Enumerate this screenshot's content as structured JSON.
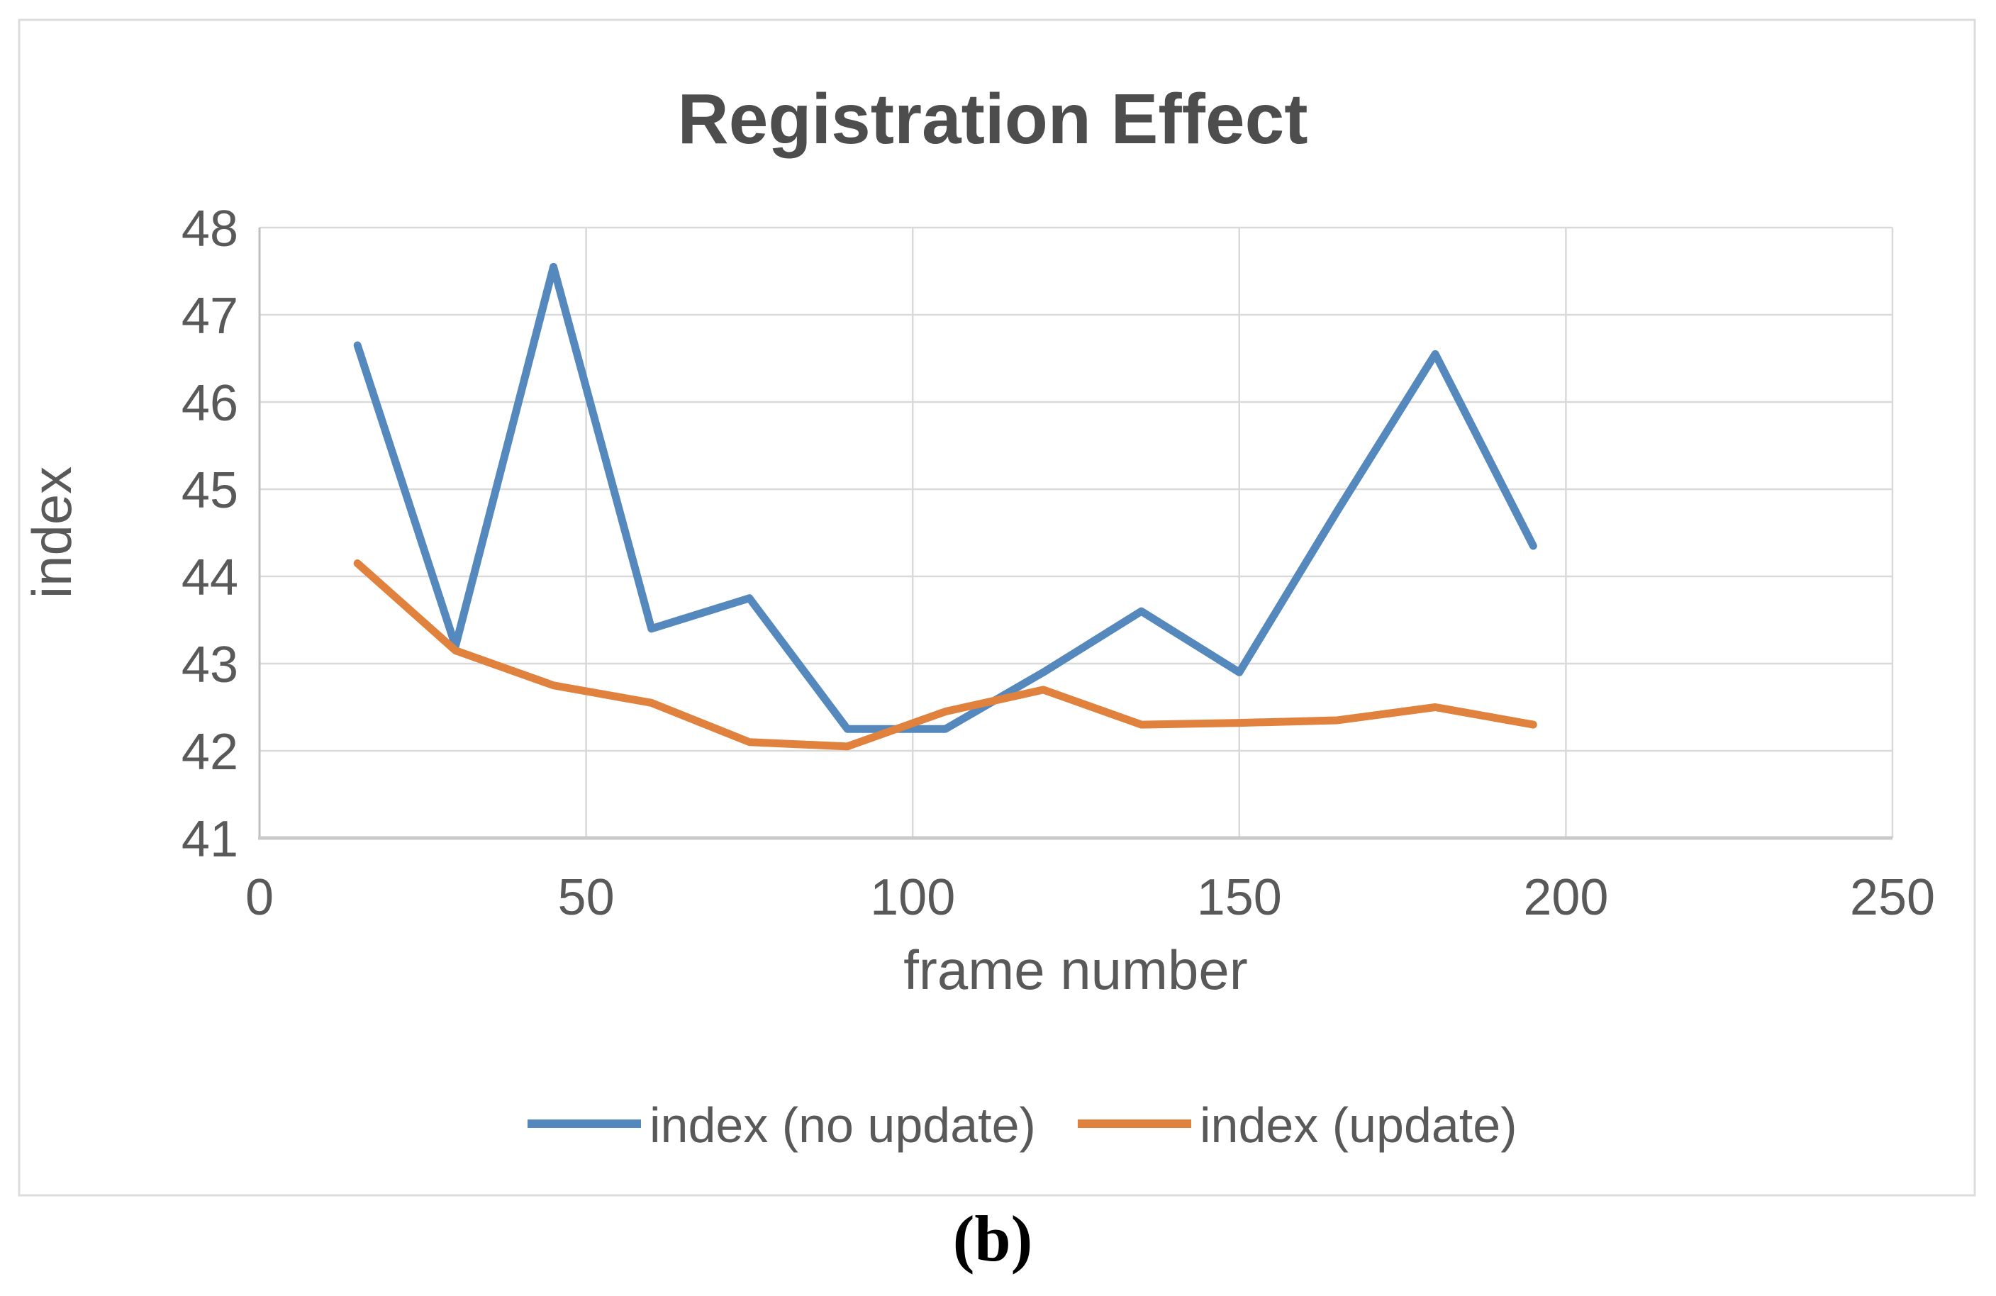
{
  "figure": {
    "caption": "(b)"
  },
  "chart_data": {
    "type": "line",
    "title": "Registration Effect",
    "xlabel": "frame number",
    "ylabel": "index",
    "x": [
      15,
      30,
      45,
      60,
      75,
      90,
      105,
      120,
      135,
      150,
      165,
      180,
      195
    ],
    "series": [
      {
        "name": "index (no update)",
        "color": "#5589be",
        "values": [
          46.65,
          43.2,
          47.55,
          43.4,
          43.75,
          42.25,
          42.25,
          42.9,
          43.6,
          42.9,
          44.75,
          46.55,
          44.35
        ]
      },
      {
        "name": "index (update)",
        "color": "#e0813d",
        "values": [
          44.15,
          43.15,
          42.75,
          42.55,
          42.1,
          42.05,
          42.45,
          42.7,
          42.3,
          42.32,
          42.35,
          42.5,
          42.3
        ]
      }
    ],
    "xlim": [
      0,
      250
    ],
    "ylim": [
      41,
      48
    ],
    "xticks": [
      0,
      50,
      100,
      150,
      200,
      250
    ],
    "yticks": [
      41,
      42,
      43,
      44,
      45,
      46,
      47,
      48
    ],
    "grid": true,
    "legend_position": "bottom-center",
    "colors": {
      "gridline": "#d9d9d9",
      "y_axis_line": "#bfbfbf",
      "x_axis_line": "#c9c9c9",
      "frame_border": "#dcdcdc",
      "tick_text": "#595959",
      "title_text": "#4d4d4d",
      "caption_text": "#000000"
    }
  }
}
